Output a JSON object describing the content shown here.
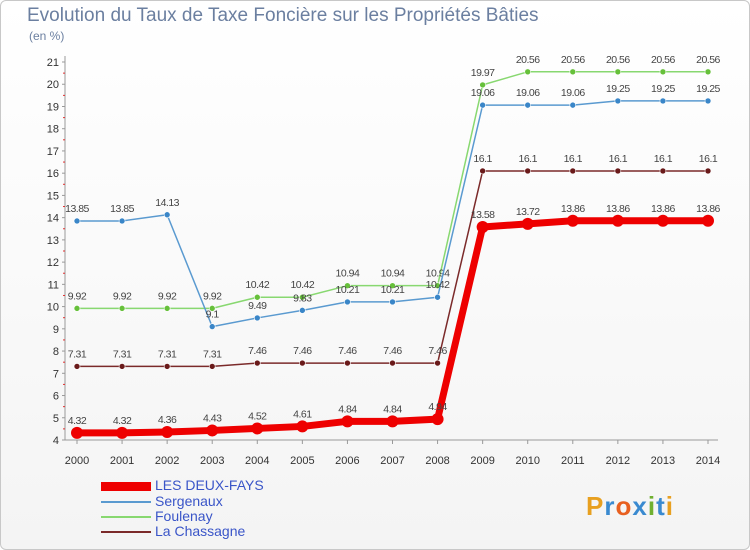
{
  "title": "Evolution du Taux de Taxe Foncière sur les Propriétés Bâties",
  "unit": "(en %)",
  "logo": {
    "text": "Proxiti",
    "letters": [
      "P",
      "r",
      "o",
      "x",
      "i",
      "t",
      "i"
    ],
    "colors": [
      "#e8a020",
      "#3a8ad0",
      "#e86020",
      "#3a8ad0",
      "#70b030",
      "#3a8ad0",
      "#e8a020"
    ]
  },
  "chart_data": {
    "type": "line",
    "title": "Evolution du Taux de Taxe Foncière sur les Propriétés Bâties",
    "ylabel": "(en %)",
    "xlabel": "",
    "ylim": [
      4,
      21
    ],
    "yticks": [
      4,
      5,
      6,
      7,
      8,
      9,
      10,
      11,
      12,
      13,
      14,
      15,
      16,
      17,
      18,
      19,
      20,
      21
    ],
    "x": [
      "2000",
      "2001",
      "2002",
      "2003",
      "2004",
      "2005",
      "2006",
      "2007",
      "2008",
      "2009",
      "2010",
      "2011",
      "2012",
      "2013",
      "2014"
    ],
    "series": [
      {
        "name": "La Chassagne",
        "color": "#7b2a2a",
        "marker": "#6a1a1a",
        "width": 1.5,
        "labels": [
          "7.31",
          "7.31",
          "7.31",
          "7.31",
          "7.46",
          "7.46",
          "7.46",
          "7.46",
          "7.46",
          "16.1",
          "16.1",
          "16.1",
          "16.1",
          "16.1",
          "16.1"
        ],
        "values": [
          7.31,
          7.31,
          7.31,
          7.31,
          7.46,
          7.46,
          7.46,
          7.46,
          7.46,
          16.1,
          16.1,
          16.1,
          16.1,
          16.1,
          16.1
        ]
      },
      {
        "name": "Foulenay",
        "color": "#88d870",
        "marker": "#66c03a",
        "width": 1.5,
        "labels": [
          "9.92",
          "9.92",
          "9.92",
          "9.92",
          "10.42",
          "10.42",
          "10.94",
          "10.94",
          "10.94",
          "19.97",
          "20.56",
          "20.56",
          "20.56",
          "20.56",
          "20.56"
        ],
        "values": [
          9.92,
          9.92,
          9.92,
          9.92,
          10.42,
          10.42,
          10.94,
          10.94,
          10.94,
          19.97,
          20.56,
          20.56,
          20.56,
          20.56,
          20.56
        ]
      },
      {
        "name": "Sergenaux",
        "color": "#5a9ad0",
        "marker": "#3a86c8",
        "width": 1.5,
        "labels": [
          "13.85",
          "13.85",
          "14.13",
          "9.1",
          "9.49",
          "9.83",
          "10.21",
          "10.21",
          "10.42",
          "19.06",
          "19.06",
          "19.06",
          "19.25",
          "19.25",
          "19.25"
        ],
        "values": [
          13.85,
          13.85,
          14.13,
          9.1,
          9.49,
          9.83,
          10.21,
          10.21,
          10.42,
          19.06,
          19.06,
          19.06,
          19.25,
          19.25,
          19.25
        ]
      },
      {
        "name": "LES DEUX-FAYS",
        "color": "#ee0000",
        "marker": "#ee0000",
        "width": 7,
        "labels": [
          "4.32",
          "4.32",
          "4.36",
          "4.43",
          "4.52",
          "4.61",
          "4.84",
          "4.84",
          "4.94",
          "13.58",
          "13.72",
          "13.86",
          "13.86",
          "13.86",
          "13.86"
        ],
        "values": [
          4.32,
          4.32,
          4.36,
          4.43,
          4.52,
          4.61,
          4.84,
          4.84,
          4.94,
          13.58,
          13.72,
          13.86,
          13.86,
          13.86,
          13.86
        ]
      }
    ],
    "legend_order": [
      "LES DEUX-FAYS",
      "Sergenaux",
      "Foulenay",
      "La Chassagne"
    ],
    "legend_position": "bottom-left",
    "grid": false
  }
}
